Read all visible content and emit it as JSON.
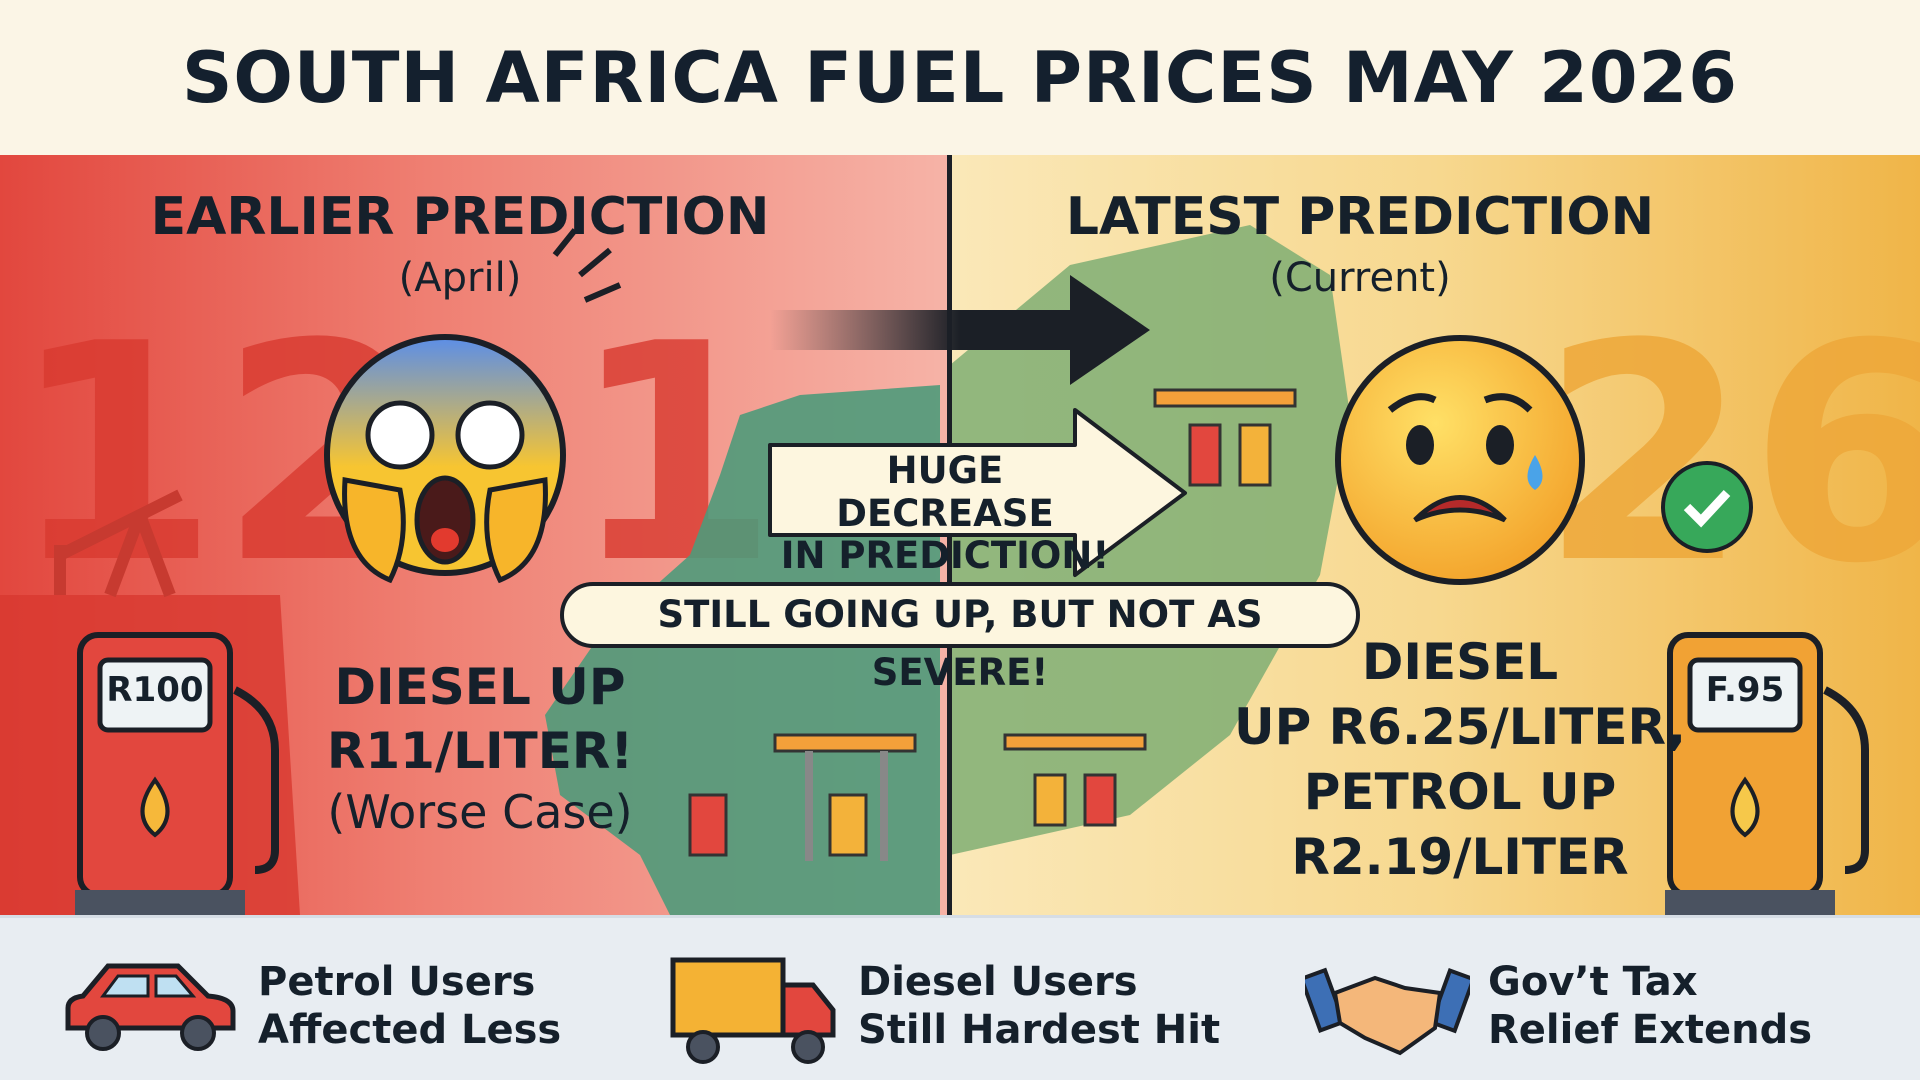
{
  "title": "SOUTH AFRICA FUEL PRICES MAY 2026",
  "left": {
    "heading": "EARLIER PREDICTION",
    "subheading": "(April)",
    "bg_numbers": [
      "12",
      "1"
    ],
    "pump_display": "R100",
    "lines": [
      "DIESEL UP",
      "R11/LITER!",
      "(Worse Case)"
    ],
    "emoji": "screaming-face-icon",
    "color": "#e2473e"
  },
  "right": {
    "heading": "LATEST PREDICTION",
    "subheading": "(Current)",
    "bg_numbers": "26",
    "pump_display": "F.95",
    "lines": [
      "DIESEL",
      "UP R6.25/LITER,",
      "PETROL UP",
      "R2.19/LITER"
    ],
    "emoji": "sad-tear-face-icon",
    "color": "#f0b548"
  },
  "callouts": {
    "decrease": [
      "HUGE DECREASE",
      "IN PREDICTION!"
    ],
    "severity": "STILL GOING UP, BUT NOT AS SEVERE!"
  },
  "bottom": [
    {
      "icon": "car-icon",
      "lines": [
        "Petrol Users",
        "Affected Less"
      ]
    },
    {
      "icon": "truck-icon",
      "lines": [
        "Diesel Users",
        "Still Hardest Hit"
      ]
    },
    {
      "icon": "handshake-icon",
      "lines": [
        "Gov’t Tax",
        "Relief Extends"
      ]
    }
  ]
}
